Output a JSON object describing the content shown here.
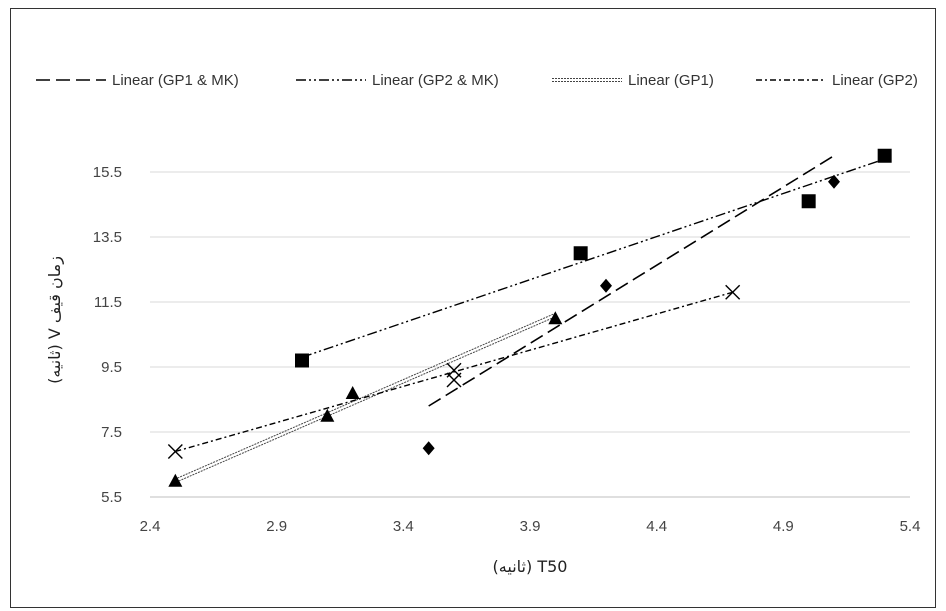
{
  "chart_data": {
    "type": "scatter",
    "title": "",
    "xlabel": "T50 (ثانیه)",
    "ylabel": "زمان قیف V (ثانیه)",
    "xlim": [
      2.4,
      5.4
    ],
    "ylim": [
      5.5,
      15.5
    ],
    "x_ticks": [
      "2.4",
      "2.9",
      "3.4",
      "3.9",
      "4.4",
      "4.9",
      "5.4"
    ],
    "y_ticks": [
      "5.5",
      "7.5",
      "9.5",
      "11.5",
      "13.5",
      "15.5"
    ],
    "grid": true,
    "legend_position": "top",
    "series": [
      {
        "marker": "diamond",
        "points": [
          [
            3.5,
            7.0
          ],
          [
            4.2,
            12.0
          ],
          [
            5.1,
            15.2
          ]
        ]
      },
      {
        "marker": "square",
        "points": [
          [
            3.0,
            9.7
          ],
          [
            4.1,
            13.0
          ],
          [
            5.0,
            14.6
          ],
          [
            5.3,
            16.0
          ]
        ]
      },
      {
        "marker": "triangle",
        "points": [
          [
            2.5,
            6.0
          ],
          [
            3.1,
            8.0
          ],
          [
            3.2,
            8.7
          ],
          [
            4.0,
            11.0
          ]
        ]
      },
      {
        "marker": "x",
        "points": [
          [
            2.5,
            6.9
          ],
          [
            3.6,
            9.1
          ],
          [
            3.6,
            9.4
          ],
          [
            4.7,
            11.8
          ]
        ]
      }
    ],
    "trendlines": [
      {
        "name": "Linear (GP1 & MK)",
        "dash": "long-dash",
        "x": [
          3.5,
          5.1
        ],
        "y": [
          8.3,
          16.0
        ]
      },
      {
        "name": "Linear (GP2 & MK)",
        "dash": "dash-dot-dot",
        "x": [
          3.0,
          5.3
        ],
        "y": [
          9.8,
          15.9
        ]
      },
      {
        "name": "Linear (GP1)",
        "dash": "double-dotted",
        "x": [
          2.5,
          4.0
        ],
        "y": [
          6.0,
          11.1
        ]
      },
      {
        "name": "Linear (GP2)",
        "dash": "dash-dot",
        "x": [
          2.5,
          4.7
        ],
        "y": [
          6.9,
          11.8
        ]
      }
    ]
  }
}
